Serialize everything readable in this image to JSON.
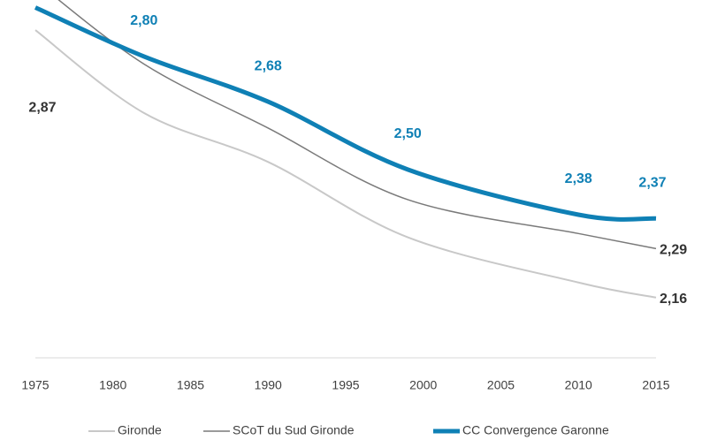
{
  "chart_data": {
    "type": "line",
    "x": [
      1975,
      1982,
      1990,
      1999,
      2010,
      2015
    ],
    "xlim": [
      1975,
      2015
    ],
    "xticks": [
      1975,
      1980,
      1985,
      1990,
      1995,
      2000,
      2005,
      2010,
      2015
    ],
    "ylim": [
      2.0,
      2.95
    ],
    "legend": "bottom",
    "series": [
      {
        "name": "Gironde",
        "color": "#c8c8c8",
        "values": [
          2.87,
          2.65,
          2.52,
          2.32,
          2.2,
          2.16
        ],
        "value_labels": [
          "2,87",
          null,
          null,
          null,
          null,
          "2,16"
        ]
      },
      {
        "name": "SCoT du Sud Gironde",
        "color": "#7a7a7a",
        "values": [
          3.0,
          2.78,
          2.61,
          2.42,
          2.33,
          2.29
        ],
        "value_labels": [
          null,
          null,
          null,
          null,
          null,
          "2,29"
        ]
      },
      {
        "name": "CC Convergence Garonne",
        "color": "#0f80b5",
        "values": [
          2.93,
          2.8,
          2.68,
          2.5,
          2.38,
          2.37
        ],
        "value_labels": [
          null,
          "2,80",
          "2,68",
          "2,50",
          "2,38",
          "2,37"
        ]
      }
    ]
  }
}
